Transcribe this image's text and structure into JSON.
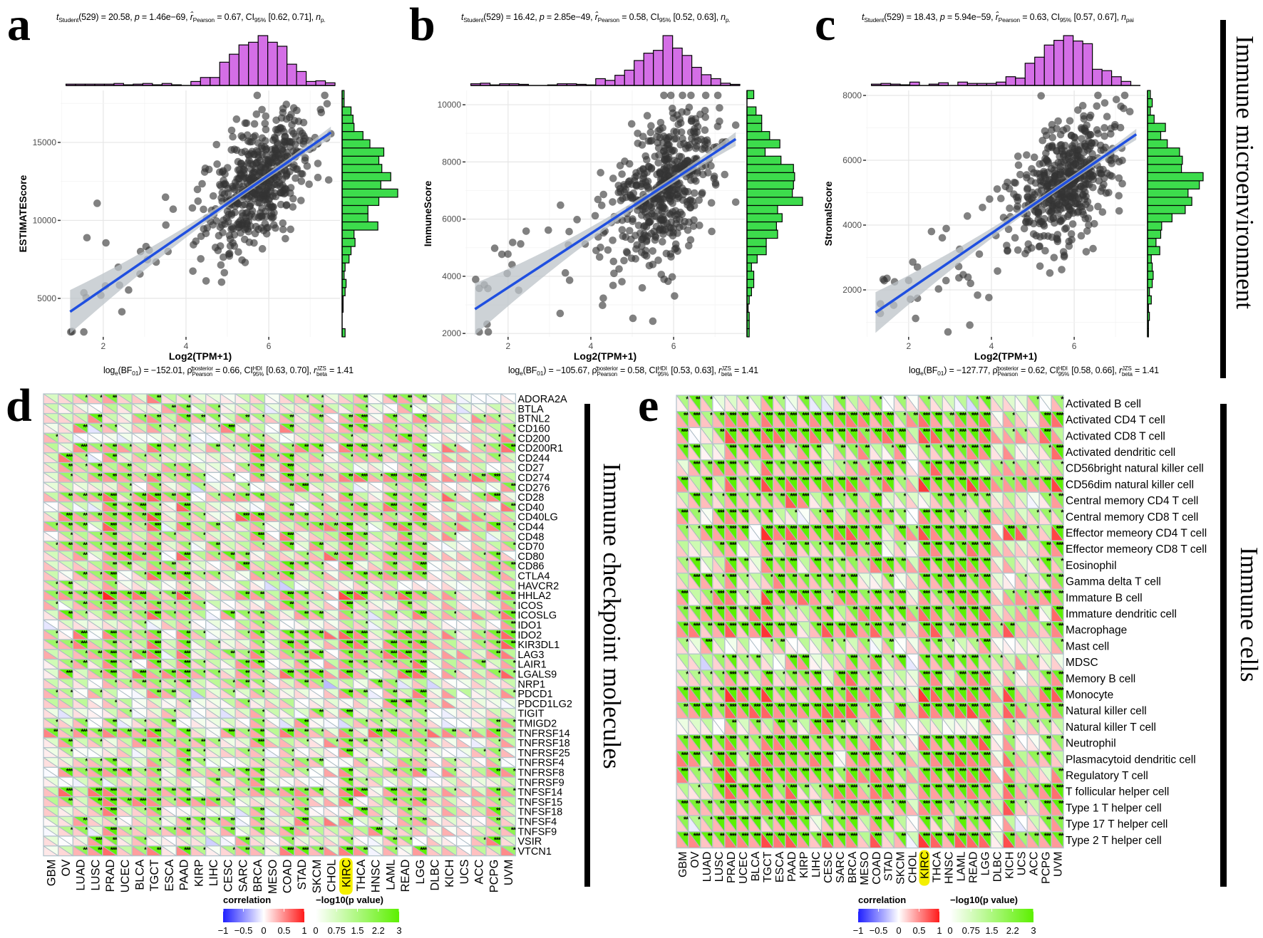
{
  "panel_labels": {
    "a": "a",
    "b": "b",
    "c": "c",
    "d": "d",
    "e": "e"
  },
  "side_titles": {
    "microenvironment": "Immune microenvironment",
    "checkpoints": "Immune checkpoint molecules",
    "cells": "Immune cells"
  },
  "colors": {
    "top_histogram": "#d46ee6",
    "right_histogram": "#3ddc4c",
    "points": "#333333",
    "regression_line": "#1f4fe0",
    "confidence_band": "#bcc3c8",
    "corr_low": "#1f1fff",
    "corr_mid": "#ffffff",
    "corr_high": "#ff1a1a",
    "p_low": "#ffffff",
    "p_high": "#5cf000",
    "highlight": "#f4ef00"
  },
  "chart_data": [
    {
      "type": "scatter",
      "xlabel": "Log2(TPM+1)",
      "ylabel": "ESTIMATEScore",
      "xlim": [
        0.97,
        7.72
      ],
      "ylim": [
        2530,
        18330
      ],
      "x_ticks": [
        "2",
        "4",
        "6"
      ],
      "y_ticks": [
        "5000",
        "10000",
        "15000"
      ],
      "n": 531,
      "marginal_histograms": true,
      "regression": {
        "x": [
          1.2,
          7.5
        ],
        "y": [
          4140,
          15640
        ]
      },
      "stats_top": [
        {
          "text": "t",
          "style": "i"
        },
        {
          "text": "Student",
          "style": "sub"
        },
        {
          "text": "(529) = 20.58, "
        },
        {
          "text": "p",
          "style": "i"
        },
        {
          "text": " = 1.46e−69, "
        },
        {
          "text": "r̂",
          "style": "i"
        },
        {
          "text": "Pearson",
          "style": "sub"
        },
        {
          "text": " = 0.67, CI"
        },
        {
          "text": "95%",
          "style": "sub"
        },
        {
          "text": " [0.62, 0.71], "
        },
        {
          "text": "n",
          "style": "i"
        },
        {
          "text": "p.",
          "style": "sub"
        }
      ],
      "stats_bottom": [
        {
          "text": "log"
        },
        {
          "text": "e",
          "style": "sub"
        },
        {
          "text": "(BF"
        },
        {
          "text": "01",
          "style": "sub"
        },
        {
          "text": ") = −152.01, "
        },
        {
          "text": "ρ̂"
        },
        {
          "sup": "posterior",
          "sub": "Pearson",
          "style": "stack"
        },
        {
          "text": " = 0.66, CI"
        },
        {
          "sup": "HDI",
          "sub": "95%",
          "style": "stack"
        },
        {
          "text": " [0.63, 0.70], "
        },
        {
          "text": "r",
          "style": "i"
        },
        {
          "sup": "JZS",
          "sub": "beta",
          "style": "stack"
        },
        {
          "text": " = 1.41"
        }
      ]
    },
    {
      "type": "scatter",
      "xlabel": "Log2(TPM+1)",
      "ylabel": "ImmuneScore",
      "xlim": [
        0.97,
        7.72
      ],
      "ylim": [
        1880,
        10500
      ],
      "x_ticks": [
        "2",
        "4",
        "6"
      ],
      "y_ticks": [
        "2000",
        "4000",
        "6000",
        "8000",
        "10000"
      ],
      "n": 531,
      "marginal_histograms": true,
      "regression": {
        "x": [
          1.2,
          7.5
        ],
        "y": [
          2850,
          8800
        ]
      },
      "stats_top": [
        {
          "text": "t",
          "style": "i"
        },
        {
          "text": "Student",
          "style": "sub"
        },
        {
          "text": "(529) = 16.42, "
        },
        {
          "text": "p",
          "style": "i"
        },
        {
          "text": " = 2.85e−49, "
        },
        {
          "text": "r̂",
          "style": "i"
        },
        {
          "text": "Pearson",
          "style": "sub"
        },
        {
          "text": " = 0.58, CI"
        },
        {
          "text": "95%",
          "style": "sub"
        },
        {
          "text": " [0.52, 0.63], "
        },
        {
          "text": "n",
          "style": "i"
        },
        {
          "text": "p.",
          "style": "sub"
        }
      ],
      "stats_bottom": [
        {
          "text": "log"
        },
        {
          "text": "e",
          "style": "sub"
        },
        {
          "text": "(BF"
        },
        {
          "text": "01",
          "style": "sub"
        },
        {
          "text": ") = −105.67, "
        },
        {
          "text": "ρ̂"
        },
        {
          "sup": "posterior",
          "sub": "Pearson",
          "style": "stack"
        },
        {
          "text": " = 0.58, CI"
        },
        {
          "sup": "HDI",
          "sub": "95%",
          "style": "stack"
        },
        {
          "text": " [0.53, 0.63], "
        },
        {
          "text": "r",
          "style": "i"
        },
        {
          "sup": "JZS",
          "sub": "beta",
          "style": "stack"
        },
        {
          "text": " = 1.41"
        }
      ]
    },
    {
      "type": "scatter",
      "xlabel": "Log2(TPM+1)",
      "ylabel": "StromalScore",
      "xlim": [
        0.97,
        7.72
      ],
      "ylim": [
        550,
        8154
      ],
      "x_ticks": [
        "2",
        "4",
        "6"
      ],
      "y_ticks": [
        "2000",
        "4000",
        "6000",
        "8000"
      ],
      "n": 531,
      "marginal_histograms": true,
      "regression": {
        "x": [
          1.2,
          7.5
        ],
        "y": [
          1300,
          6800
        ]
      },
      "stats_top": [
        {
          "text": "t",
          "style": "i"
        },
        {
          "text": "Student",
          "style": "sub"
        },
        {
          "text": "(529) = 18.43, "
        },
        {
          "text": "p",
          "style": "i"
        },
        {
          "text": " = 5.94e−59, "
        },
        {
          "text": "r̂",
          "style": "i"
        },
        {
          "text": "Pearson",
          "style": "sub"
        },
        {
          "text": " = 0.63, CI"
        },
        {
          "text": "95%",
          "style": "sub"
        },
        {
          "text": " [0.57, 0.67], "
        },
        {
          "text": "n",
          "style": "i"
        },
        {
          "text": "pai",
          "style": "sub"
        }
      ],
      "stats_bottom": [
        {
          "text": "log"
        },
        {
          "text": "e",
          "style": "sub"
        },
        {
          "text": "(BF"
        },
        {
          "text": "01",
          "style": "sub"
        },
        {
          "text": ") = −127.77, "
        },
        {
          "text": "ρ̂"
        },
        {
          "sup": "posterior",
          "sub": "Pearson",
          "style": "stack"
        },
        {
          "text": " = 0.62, CI"
        },
        {
          "sup": "HDI",
          "sub": "95%",
          "style": "stack"
        },
        {
          "text": " [0.58, 0.66], "
        },
        {
          "text": "r",
          "style": "i"
        },
        {
          "sup": "JZS",
          "sub": "beta",
          "style": "stack"
        },
        {
          "text": " = 1.41"
        }
      ]
    },
    {
      "type": "heatmap",
      "cell_style": "split triangles: lower-left correlation, upper-right -log10(p value), stars for significance",
      "columns": [
        "GBM",
        "OV",
        "LUAD",
        "LUSC",
        "PRAD",
        "UCEC",
        "BLCA",
        "TGCT",
        "ESCA",
        "PAAD",
        "KIRP",
        "LIHC",
        "CESC",
        "SARC",
        "BRCA",
        "MESO",
        "COAD",
        "STAD",
        "SKCM",
        "CHOL",
        "KIRC",
        "THCA",
        "HNSC",
        "LAML",
        "READ",
        "LGG",
        "DLBC",
        "KICH",
        "UCS",
        "ACC",
        "PCPG",
        "UVM"
      ],
      "highlighted_column": "KIRC",
      "rows": [
        "ADORA2A",
        "BTLA",
        "BTNL2",
        "CD160",
        "CD200",
        "CD200R1",
        "CD244",
        "CD27",
        "CD274",
        "CD276",
        "CD28",
        "CD40",
        "CD40LG",
        "CD44",
        "CD48",
        "CD70",
        "CD80",
        "CD86",
        "CTLA4",
        "HAVCR2",
        "HHLA2",
        "ICOS",
        "ICOSLG",
        "IDO1",
        "IDO2",
        "KIR3DL1",
        "LAG3",
        "LAIR1",
        "LGALS9",
        "NRP1",
        "PDCD1",
        "PDCD1LG2",
        "TIGIT",
        "TMIGD2",
        "TNFRSF14",
        "TNFRSF18",
        "TNFRSF25",
        "TNFRSF4",
        "TNFRSF8",
        "TNFRSF9",
        "TNFSF14",
        "TNFSF15",
        "TNFSF18",
        "TNFSF4",
        "TNFSF9",
        "VSIR",
        "VTCN1"
      ],
      "legend": {
        "correlation_title": "correlation",
        "correlation_ticks": [
          "−1",
          "−0.5",
          "0",
          "0.5",
          "1"
        ],
        "p_title": "−log10(p value)",
        "p_ticks": [
          "0",
          "0.75",
          "1.5",
          "2.2",
          "3"
        ]
      }
    },
    {
      "type": "heatmap",
      "cell_style": "split triangles: lower-left correlation, upper-right -log10(p value), stars for significance",
      "columns": [
        "GBM",
        "OV",
        "LUAD",
        "LUSC",
        "PRAD",
        "UCEC",
        "BLCA",
        "TGCT",
        "ESCA",
        "PAAD",
        "KIRP",
        "LIHC",
        "CESC",
        "SARC",
        "BRCA",
        "MESO",
        "COAD",
        "STAD",
        "SKCM",
        "CHOL",
        "KIRC",
        "THCA",
        "HNSC",
        "LAML",
        "READ",
        "LGG",
        "DLBC",
        "KICH",
        "UCS",
        "ACC",
        "PCPG",
        "UVM"
      ],
      "highlighted_column": "KIRC",
      "rows": [
        "Activated B cell",
        "Activated CD4 T cell",
        "Activated CD8 T cell",
        "Activated dendritic cell",
        "CD56bright natural killer cell",
        "CD56dim natural killer cell",
        "Central memory CD4 T cell",
        "Central memory CD8 T cell",
        "Effector memeory CD4 T cell",
        "Effector memeory CD8 T cell",
        "Eosinophil",
        "Gamma delta T cell",
        "Immature  B cell",
        "Immature dendritic cell",
        "Macrophage",
        "Mast cell",
        "MDSC",
        "Memory B cell",
        "Monocyte",
        "Natural killer cell",
        "Natural killer T cell",
        "Neutrophil",
        "Plasmacytoid dendritic cell",
        "Regulatory T cell",
        "T follicular helper cell",
        "Type 1 T helper cell",
        "Type 17 T helper cell",
        "Type 2 T helper cell"
      ],
      "legend": {
        "correlation_title": "correlation",
        "correlation_ticks": [
          "−1",
          "−0.5",
          "0",
          "0.5",
          "1"
        ],
        "p_title": "−log10(p value)",
        "p_ticks": [
          "0",
          "0.75",
          "1.5",
          "2.2",
          "3"
        ]
      }
    }
  ]
}
